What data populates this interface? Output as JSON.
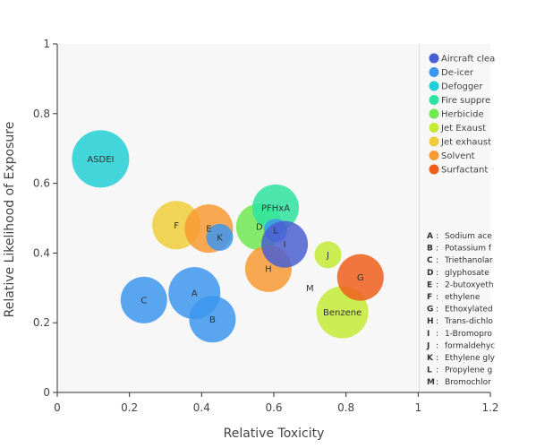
{
  "chart_data": {
    "type": "scatter",
    "xlabel": "Relative Toxicity",
    "ylabel": "Relative Likelihood of Exposure",
    "xlim": [
      0,
      1.2
    ],
    "ylim": [
      0,
      1
    ],
    "x_ticks": [
      "0",
      "0.2",
      "0.4",
      "0.6",
      "0.8",
      "1",
      "1.2"
    ],
    "y_ticks": [
      "0",
      "0.2",
      "0.4",
      "0.6",
      "0.8",
      "1"
    ],
    "grid": false,
    "legend_position": "right",
    "series": [
      {
        "name": "Aircraft clea",
        "color": "#4a5fd0"
      },
      {
        "name": "De-icer",
        "color": "#3d96ee"
      },
      {
        "name": "Defogger",
        "color": "#22cfd4"
      },
      {
        "name": "Fire suppre",
        "color": "#2ee3a0"
      },
      {
        "name": "Herbicide",
        "color": "#6fe852"
      },
      {
        "name": "Jet Exaust",
        "color": "#c3ea35"
      },
      {
        "name": "Jet exhaust",
        "color": "#f0cc3a"
      },
      {
        "name": "Solvent",
        "color": "#f89a33"
      },
      {
        "name": "Surfactant",
        "color": "#ee5f1c"
      }
    ],
    "points": [
      {
        "label": "ASDEI",
        "series": 2,
        "x": 0.12,
        "y": 0.67,
        "size": 32
      },
      {
        "label": "F",
        "series": 6,
        "x": 0.33,
        "y": 0.48,
        "size": 27
      },
      {
        "label": "E",
        "series": 7,
        "x": 0.42,
        "y": 0.47,
        "size": 27
      },
      {
        "label": "K",
        "series": 1,
        "x": 0.45,
        "y": 0.445,
        "size": 15
      },
      {
        "label": "C",
        "series": 1,
        "x": 0.24,
        "y": 0.265,
        "size": 26
      },
      {
        "label": "A",
        "series": 1,
        "x": 0.38,
        "y": 0.285,
        "size": 29
      },
      {
        "label": "B",
        "series": 1,
        "x": 0.43,
        "y": 0.21,
        "size": 26
      },
      {
        "label": "D",
        "series": 4,
        "x": 0.56,
        "y": 0.475,
        "size": 26
      },
      {
        "label": "PFHxA",
        "series": 3,
        "x": 0.605,
        "y": 0.53,
        "size": 26
      },
      {
        "label": "L",
        "series": 1,
        "x": 0.605,
        "y": 0.465,
        "size": 13
      },
      {
        "label": "H",
        "series": 7,
        "x": 0.585,
        "y": 0.355,
        "size": 26
      },
      {
        "label": "I",
        "series": 0,
        "x": 0.63,
        "y": 0.425,
        "size": 26
      },
      {
        "label": "M",
        "series": 1,
        "x": 0.7,
        "y": 0.3,
        "size": 0
      },
      {
        "label": "J",
        "series": 5,
        "x": 0.75,
        "y": 0.395,
        "size": 15
      },
      {
        "label": "Benzene",
        "series": 5,
        "x": 0.79,
        "y": 0.23,
        "size": 29
      },
      {
        "label": "G",
        "series": 8,
        "x": 0.84,
        "y": 0.33,
        "size": 26
      }
    ],
    "key": [
      {
        "id": "A",
        "text": "Sodium ace"
      },
      {
        "id": "B",
        "text": "Potassium f"
      },
      {
        "id": "C",
        "text": "Triethanolar"
      },
      {
        "id": "D",
        "text": "glyphosate"
      },
      {
        "id": "E",
        "text": "2-butoxyeth"
      },
      {
        "id": "F",
        "text": "ethylene"
      },
      {
        "id": "G",
        "text": "Ethoxylated"
      },
      {
        "id": "H",
        "text": "Trans-dichlo"
      },
      {
        "id": "I",
        "text": "1-Bromopro"
      },
      {
        "id": "J",
        "text": "formaldehyc"
      },
      {
        "id": "K",
        "text": "Ethylene gly"
      },
      {
        "id": "L",
        "text": "Propylene g"
      },
      {
        "id": "M",
        "text": "Bromochlor"
      }
    ]
  }
}
